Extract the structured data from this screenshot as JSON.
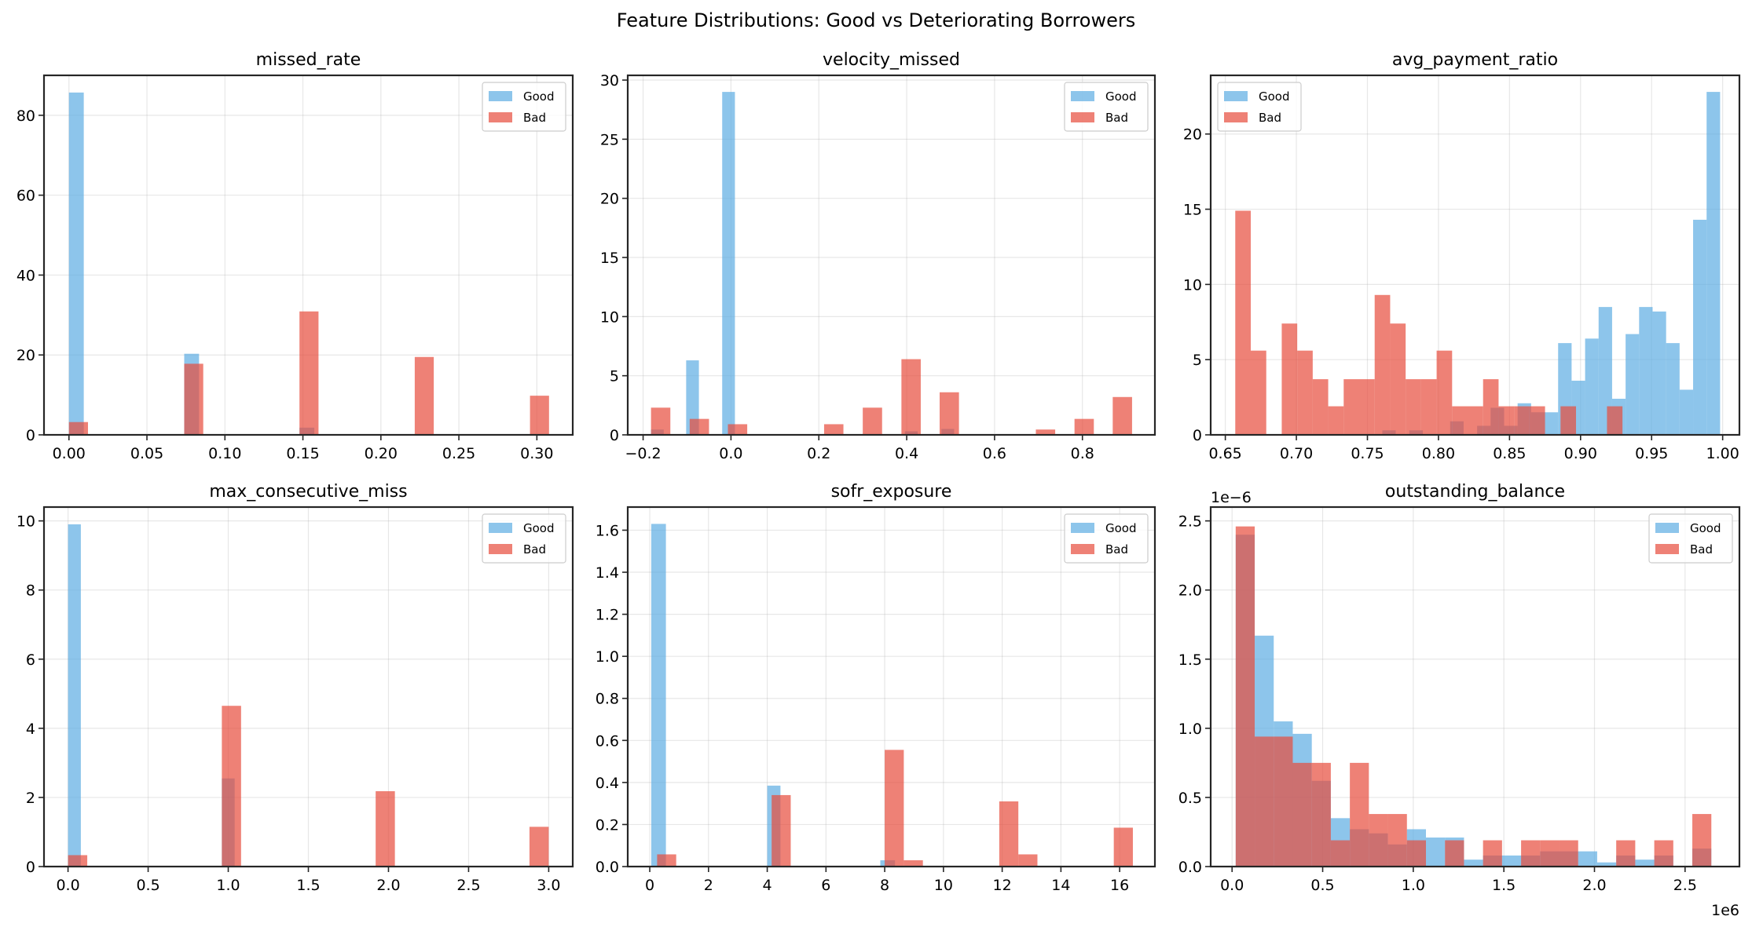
{
  "chart_data": {
    "type": "bar",
    "title": "Feature Distributions: Good vs Deteriorating Borrowers",
    "layout": "2x3 grid",
    "colors": {
      "Good": "#5DADE2",
      "Bad": "#E74C3C",
      "alpha": 0.7
    },
    "subplots": [
      {
        "title": "missed_rate",
        "legend": {
          "entries": [
            "Good",
            "Bad"
          ],
          "placement": "upper-right"
        },
        "xlim": [
          -0.016,
          0.323
        ],
        "ylim": [
          0,
          90
        ],
        "xticks": [
          0.0,
          0.05,
          0.1,
          0.15,
          0.2,
          0.25,
          0.3
        ],
        "xtick_labels": [
          "0.00",
          "0.05",
          "0.10",
          "0.15",
          "0.20",
          "0.25",
          "0.30"
        ],
        "yticks": [
          0,
          20,
          40,
          60,
          80
        ],
        "ytick_labels": [
          "0",
          "20",
          "40",
          "60",
          "80"
        ],
        "grid": true,
        "series": [
          {
            "name": "Good",
            "bins": [
              [
                0.0,
                0.0095,
                85.7
              ],
              [
                0.0739,
                0.0834,
                20.3
              ],
              [
                0.1478,
                0.1573,
                1.8
              ],
              [
                0.2217,
                0.2312,
                0.2
              ]
            ]
          },
          {
            "name": "Bad",
            "bins": [
              [
                0.0,
                0.0122,
                3.2
              ],
              [
                0.0739,
                0.0861,
                17.8
              ],
              [
                0.1478,
                0.16,
                30.9
              ],
              [
                0.2217,
                0.2339,
                19.5
              ],
              [
                0.2956,
                0.3078,
                9.8
              ]
            ]
          }
        ]
      },
      {
        "title": "velocity_missed",
        "legend": {
          "entries": [
            "Good",
            "Bad"
          ],
          "placement": "upper-right"
        },
        "xlim": [
          -0.235,
          0.965
        ],
        "ylim": [
          0,
          30.4
        ],
        "xticks": [
          -0.2,
          0.0,
          0.2,
          0.4,
          0.6,
          0.8
        ],
        "xtick_labels": [
          "−0.2",
          "0.0",
          "0.2",
          "0.4",
          "0.6",
          "0.8"
        ],
        "yticks": [
          0,
          5,
          10,
          15,
          20,
          25,
          30
        ],
        "ytick_labels": [
          "0",
          "5",
          "10",
          "15",
          "20",
          "25",
          "30"
        ],
        "grid": true,
        "series": [
          {
            "name": "Good",
            "bins": [
              [
                -0.182,
                -0.153,
                0.45
              ],
              [
                -0.102,
                -0.073,
                6.3
              ],
              [
                -0.02,
                0.009,
                29.0
              ],
              [
                0.396,
                0.425,
                0.3
              ],
              [
                0.479,
                0.508,
                0.5
              ]
            ]
          },
          {
            "name": "Bad",
            "bins": [
              [
                -0.182,
                -0.138,
                2.3
              ],
              [
                -0.094,
                -0.05,
                1.35
              ],
              [
                -0.007,
                0.037,
                0.9
              ],
              [
                0.212,
                0.256,
                0.9
              ],
              [
                0.3,
                0.344,
                2.3
              ],
              [
                0.388,
                0.432,
                6.4
              ],
              [
                0.475,
                0.519,
                3.6
              ],
              [
                0.694,
                0.738,
                0.45
              ],
              [
                0.782,
                0.826,
                1.35
              ],
              [
                0.869,
                0.913,
                3.2
              ]
            ]
          }
        ]
      },
      {
        "title": "avg_payment_ratio",
        "legend": {
          "entries": [
            "Good",
            "Bad"
          ],
          "placement": "upper-left"
        },
        "xlim": [
          0.6397,
          1.0118
        ],
        "ylim": [
          0,
          23.9
        ],
        "xticks": [
          0.65,
          0.7,
          0.75,
          0.8,
          0.85,
          0.9,
          0.95,
          1.0
        ],
        "xtick_labels": [
          "0.65",
          "0.70",
          "0.75",
          "0.80",
          "0.85",
          "0.90",
          "0.95",
          "1.00"
        ],
        "yticks": [
          0,
          5,
          10,
          15,
          20
        ],
        "ytick_labels": [
          "0",
          "5",
          "10",
          "15",
          "20"
        ],
        "grid": true,
        "series": [
          {
            "name": "Good",
            "bins": [
              [
                0.7605,
                0.7699,
                0.3
              ],
              [
                0.7795,
                0.789,
                0.3
              ],
              [
                0.8082,
                0.8177,
                0.9
              ],
              [
                0.8272,
                0.8367,
                0.6
              ],
              [
                0.8367,
                0.8462,
                1.8
              ],
              [
                0.8462,
                0.8557,
                0.6
              ],
              [
                0.8557,
                0.8652,
                2.1
              ],
              [
                0.8652,
                0.8747,
                1.5
              ],
              [
                0.8747,
                0.8842,
                1.5
              ],
              [
                0.8842,
                0.8937,
                6.1
              ],
              [
                0.8937,
                0.9032,
                3.6
              ],
              [
                0.9032,
                0.9127,
                6.4
              ],
              [
                0.9127,
                0.9222,
                8.5
              ],
              [
                0.9222,
                0.9317,
                2.4
              ],
              [
                0.9317,
                0.9412,
                6.7
              ],
              [
                0.9412,
                0.9507,
                8.5
              ],
              [
                0.9507,
                0.9602,
                8.2
              ],
              [
                0.9602,
                0.9697,
                6.1
              ],
              [
                0.9697,
                0.9792,
                3.0
              ],
              [
                0.9792,
                0.9887,
                14.3
              ],
              [
                0.9887,
                0.9982,
                22.8
              ]
            ]
          },
          {
            "name": "Bad",
            "bins": [
              [
                0.657,
                0.6679,
                14.9
              ],
              [
                0.6679,
                0.6788,
                5.6
              ],
              [
                0.6897,
                0.7006,
                7.4
              ],
              [
                0.7006,
                0.7115,
                5.6
              ],
              [
                0.7115,
                0.7224,
                3.7
              ],
              [
                0.7224,
                0.7333,
                1.9
              ],
              [
                0.7333,
                0.7442,
                3.7
              ],
              [
                0.7442,
                0.7551,
                3.7
              ],
              [
                0.7551,
                0.766,
                9.3
              ],
              [
                0.766,
                0.7769,
                7.4
              ],
              [
                0.7769,
                0.7878,
                3.7
              ],
              [
                0.7878,
                0.7987,
                3.7
              ],
              [
                0.7987,
                0.8096,
                5.6
              ],
              [
                0.8096,
                0.8205,
                1.9
              ],
              [
                0.8205,
                0.8314,
                1.9
              ],
              [
                0.8314,
                0.8423,
                3.7
              ],
              [
                0.8423,
                0.8532,
                1.9
              ],
              [
                0.8532,
                0.8641,
                1.9
              ],
              [
                0.8641,
                0.875,
                1.9
              ],
              [
                0.8859,
                0.8968,
                1.9
              ],
              [
                0.9186,
                0.9295,
                1.9
              ]
            ]
          }
        ]
      },
      {
        "title": "max_consecutive_miss",
        "legend": {
          "entries": [
            "Good",
            "Bad"
          ],
          "placement": "upper-right"
        },
        "xlim": [
          -0.15,
          3.15
        ],
        "ylim": [
          0,
          10.4
        ],
        "xticks": [
          0.0,
          0.5,
          1.0,
          1.5,
          2.0,
          2.5,
          3.0
        ],
        "xtick_labels": [
          "0.0",
          "0.5",
          "1.0",
          "1.5",
          "2.0",
          "2.5",
          "3.0"
        ],
        "yticks": [
          0,
          2,
          4,
          6,
          8,
          10
        ],
        "ytick_labels": [
          "0",
          "2",
          "4",
          "6",
          "8",
          "10"
        ],
        "grid": true,
        "series": [
          {
            "name": "Good",
            "bins": [
              [
                0.0,
                0.08,
                9.9
              ],
              [
                0.96,
                1.04,
                2.55
              ]
            ]
          },
          {
            "name": "Bad",
            "bins": [
              [
                0.0,
                0.12,
                0.33
              ],
              [
                0.96,
                1.08,
                4.65
              ],
              [
                1.92,
                2.04,
                2.18
              ],
              [
                2.88,
                3.0,
                1.15
              ]
            ]
          }
        ]
      },
      {
        "title": "sofr_exposure",
        "legend": {
          "entries": [
            "Good",
            "Bad"
          ],
          "placement": "upper-right"
        },
        "xlim": [
          -0.75,
          17.2
        ],
        "ylim": [
          0,
          1.71
        ],
        "xticks": [
          0,
          2,
          4,
          6,
          8,
          10,
          12,
          14,
          16
        ],
        "xtick_labels": [
          "0",
          "2",
          "4",
          "6",
          "8",
          "10",
          "12",
          "14",
          "16"
        ],
        "yticks": [
          0.0,
          0.2,
          0.4,
          0.6,
          0.8,
          1.0,
          1.2,
          1.4,
          1.6
        ],
        "ytick_labels": [
          "0.0",
          "0.2",
          "0.4",
          "0.6",
          "0.8",
          "1.0",
          "1.2",
          "1.4",
          "1.6"
        ],
        "grid": true,
        "series": [
          {
            "name": "Good",
            "bins": [
              [
                0.05,
                0.55,
                1.63
              ],
              [
                4.0,
                4.45,
                0.385
              ],
              [
                7.85,
                8.35,
                0.03
              ]
            ]
          },
          {
            "name": "Bad",
            "bins": [
              [
                0.25,
                0.9,
                0.058
              ],
              [
                4.15,
                4.8,
                0.34
              ],
              [
                8.0,
                8.65,
                0.555
              ],
              [
                8.65,
                9.3,
                0.03
              ],
              [
                11.9,
                12.55,
                0.31
              ],
              [
                12.55,
                13.2,
                0.058
              ],
              [
                15.8,
                16.45,
                0.185
              ]
            ]
          }
        ]
      },
      {
        "title": "outstanding_balance",
        "legend": {
          "entries": [
            "Good",
            "Bad"
          ],
          "placement": "upper-right"
        },
        "xlim": [
          -118000,
          2800000
        ],
        "ylim": [
          0,
          2.6e-06
        ],
        "xticks": [
          0,
          500000,
          1000000,
          1500000,
          2000000,
          2500000
        ],
        "xtick_labels": [
          "0.0",
          "0.5",
          "1.0",
          "1.5",
          "2.0",
          "2.5"
        ],
        "x_offset_label": "1e6",
        "yticks": [
          0,
          5e-07,
          1e-06,
          1.5e-06,
          2e-06,
          2.5e-06
        ],
        "ytick_labels": [
          "0.0",
          "0.5",
          "1.0",
          "1.5",
          "2.0",
          "2.5"
        ],
        "y_offset_label": "1e−6",
        "grid": true,
        "series": [
          {
            "name": "Good",
            "bins": [
              [
                20000,
                125000,
                2.4e-06
              ],
              [
                125000,
                230000,
                1.67e-06
              ],
              [
                230000,
                335000,
                1.05e-06
              ],
              [
                335000,
                440000,
                9.6e-07
              ],
              [
                440000,
                545000,
                6.2e-07
              ],
              [
                545000,
                650000,
                3.5e-07
              ],
              [
                650000,
                755000,
                2.7e-07
              ],
              [
                755000,
                860000,
                2.4e-07
              ],
              [
                860000,
                965000,
                1.6e-07
              ],
              [
                965000,
                1070000,
                2.7e-07
              ],
              [
                1070000,
                1175000,
                2.1e-07
              ],
              [
                1175000,
                1280000,
                2.1e-07
              ],
              [
                1280000,
                1385000,
                5e-08
              ],
              [
                1385000,
                1490000,
                8e-08
              ],
              [
                1490000,
                1595000,
                8e-08
              ],
              [
                1595000,
                1700000,
                8e-08
              ],
              [
                1700000,
                1805000,
                1.1e-07
              ],
              [
                1805000,
                1910000,
                1.1e-07
              ],
              [
                1910000,
                2015000,
                1.1e-07
              ],
              [
                2015000,
                2120000,
                3e-08
              ],
              [
                2120000,
                2225000,
                8e-08
              ],
              [
                2225000,
                2330000,
                5e-08
              ],
              [
                2330000,
                2435000,
                8e-08
              ],
              [
                2540000,
                2645000,
                1.3e-07
              ]
            ]
          },
          {
            "name": "Bad",
            "bins": [
              [
                20000,
                125000,
                2.46e-06
              ],
              [
                125000,
                230000,
                9.4e-07
              ],
              [
                230000,
                335000,
                9.4e-07
              ],
              [
                335000,
                440000,
                7.5e-07
              ],
              [
                440000,
                545000,
                7.5e-07
              ],
              [
                545000,
                650000,
                1.9e-07
              ],
              [
                650000,
                755000,
                7.5e-07
              ],
              [
                755000,
                860000,
                3.8e-07
              ],
              [
                860000,
                965000,
                3.8e-07
              ],
              [
                965000,
                1070000,
                1.9e-07
              ],
              [
                1175000,
                1280000,
                1.9e-07
              ],
              [
                1385000,
                1490000,
                1.9e-07
              ],
              [
                1595000,
                1700000,
                1.9e-07
              ],
              [
                1700000,
                1805000,
                1.9e-07
              ],
              [
                1805000,
                1910000,
                1.9e-07
              ],
              [
                2120000,
                2225000,
                1.9e-07
              ],
              [
                2330000,
                2435000,
                1.9e-07
              ],
              [
                2540000,
                2645000,
                3.8e-07
              ]
            ]
          }
        ]
      }
    ]
  }
}
